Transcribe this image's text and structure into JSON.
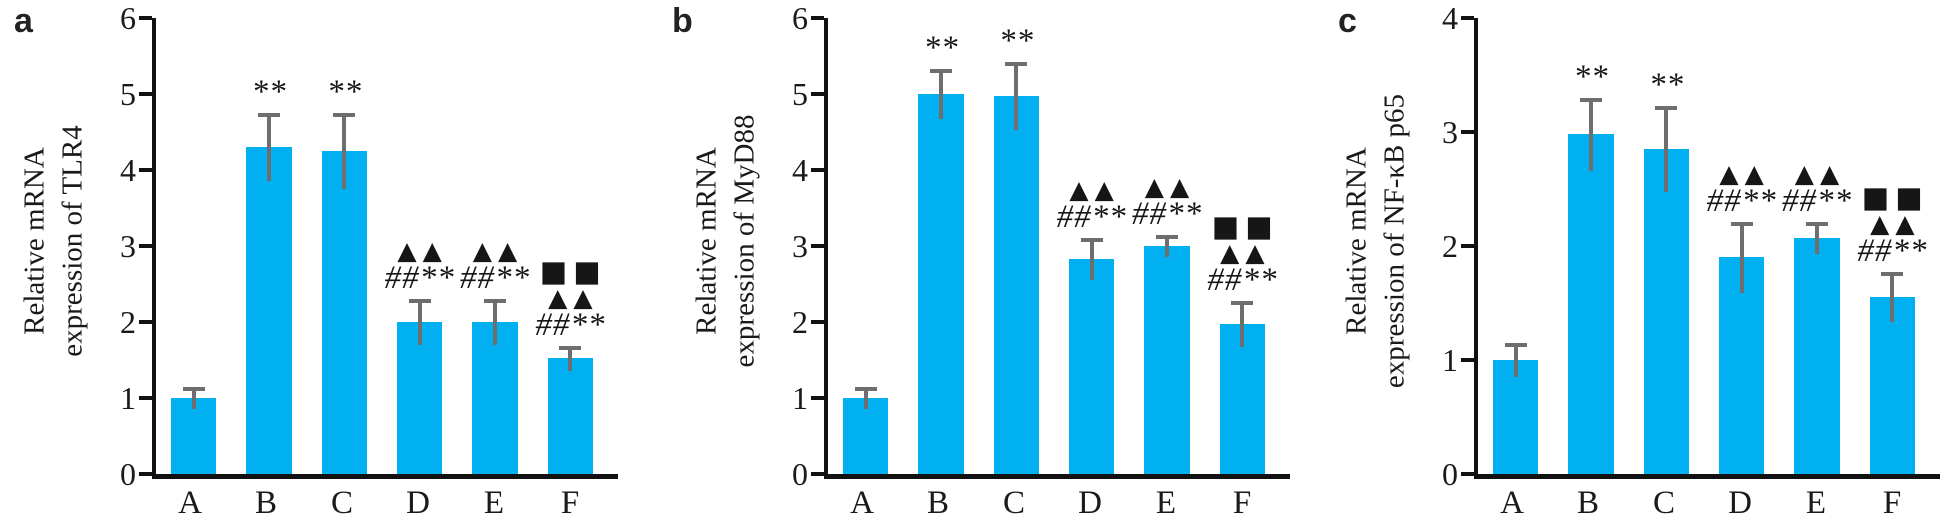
{
  "background": "#ffffff",
  "chart_data": [
    {
      "type": "bar",
      "panel_label": "a",
      "ylabel_line1": "Relative mRNA",
      "ylabel_line2": "expression of TLR4",
      "categories": [
        "A",
        "B",
        "C",
        "D",
        "E",
        "F"
      ],
      "values": [
        1.0,
        4.3,
        4.25,
        2.0,
        2.0,
        1.52
      ],
      "errors": [
        0.15,
        0.45,
        0.5,
        0.3,
        0.3,
        0.17
      ],
      "ylim": [
        0,
        6
      ],
      "yticks": [
        0,
        1,
        2,
        3,
        4,
        5,
        6
      ],
      "bar_color": "#00B0F0",
      "error_color": "#6e6e6e",
      "grid": "off",
      "legend": "none",
      "annotations": [
        [],
        [
          {
            "text": "**",
            "type": "sig"
          }
        ],
        [
          {
            "text": "**",
            "type": "sig"
          }
        ],
        [
          {
            "text": "▲▲",
            "type": "tri"
          },
          {
            "text": "##**",
            "type": "sig"
          }
        ],
        [
          {
            "text": "▲▲",
            "type": "tri"
          },
          {
            "text": "##**",
            "type": "sig"
          }
        ],
        [
          {
            "text": "■■",
            "type": "sq"
          },
          {
            "text": "▲▲",
            "type": "tri"
          },
          {
            "text": "##**",
            "type": "sig"
          }
        ]
      ]
    },
    {
      "type": "bar",
      "panel_label": "b",
      "ylabel_line1": "Relative mRNA",
      "ylabel_line2": "expression of MyD88",
      "categories": [
        "A",
        "B",
        "C",
        "D",
        "E",
        "F"
      ],
      "values": [
        1.0,
        5.0,
        4.97,
        2.83,
        3.0,
        1.97
      ],
      "errors": [
        0.14,
        0.33,
        0.45,
        0.28,
        0.15,
        0.3
      ],
      "ylim": [
        0,
        6
      ],
      "yticks": [
        0,
        1,
        2,
        3,
        4,
        5,
        6
      ],
      "bar_color": "#00B0F0",
      "error_color": "#6e6e6e",
      "grid": "off",
      "legend": "none",
      "annotations": [
        [],
        [
          {
            "text": "**",
            "type": "sig"
          }
        ],
        [
          {
            "text": "**",
            "type": "sig"
          }
        ],
        [
          {
            "text": "▲▲",
            "type": "tri"
          },
          {
            "text": "##**",
            "type": "sig"
          }
        ],
        [
          {
            "text": "▲▲",
            "type": "tri"
          },
          {
            "text": "##**",
            "type": "sig"
          }
        ],
        [
          {
            "text": "■■",
            "type": "sq"
          },
          {
            "text": "▲▲",
            "type": "tri"
          },
          {
            "text": "##**",
            "type": "sig"
          }
        ]
      ]
    },
    {
      "type": "bar",
      "panel_label": "c",
      "ylabel_line1": "Relative mRNA",
      "ylabel_line2": "expression of NF-κB p65",
      "categories": [
        "A",
        "B",
        "C",
        "D",
        "E",
        "F"
      ],
      "values": [
        1.0,
        2.98,
        2.85,
        1.9,
        2.07,
        1.55
      ],
      "errors": [
        0.15,
        0.32,
        0.38,
        0.31,
        0.14,
        0.22
      ],
      "ylim": [
        0,
        4
      ],
      "yticks": [
        0,
        1,
        2,
        3,
        4
      ],
      "bar_color": "#00B0F0",
      "error_color": "#6e6e6e",
      "grid": "off",
      "legend": "none",
      "annotations": [
        [],
        [
          {
            "text": "**",
            "type": "sig"
          }
        ],
        [
          {
            "text": "**",
            "type": "sig"
          }
        ],
        [
          {
            "text": "▲▲",
            "type": "tri"
          },
          {
            "text": "##**",
            "type": "sig"
          }
        ],
        [
          {
            "text": "▲▲",
            "type": "tri"
          },
          {
            "text": "##**",
            "type": "sig"
          }
        ],
        [
          {
            "text": "■■",
            "type": "sq"
          },
          {
            "text": "▲▲",
            "type": "tri"
          },
          {
            "text": "##**",
            "type": "sig"
          }
        ]
      ]
    }
  ]
}
